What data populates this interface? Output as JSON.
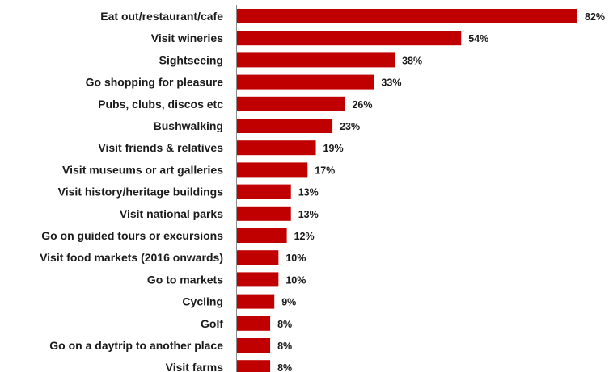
{
  "chart_data": {
    "type": "bar",
    "orientation": "horizontal",
    "bar_color": "#C00000",
    "categories": [
      "Eat out/restaurant/cafe",
      "Visit wineries",
      "Sightseeing",
      "Go shopping for pleasure",
      "Pubs, clubs, discos etc",
      "Bushwalking",
      "Visit friends & relatives",
      "Visit museums or art galleries",
      "Visit history/heritage buildings",
      "Visit national parks",
      "Go on guided tours or excursions",
      "Visit food markets (2016 onwards)",
      "Go to markets",
      "Cycling",
      "Golf",
      "Go on a daytrip to another place",
      "Visit farms"
    ],
    "values": [
      82,
      54,
      38,
      33,
      26,
      23,
      19,
      17,
      13,
      13,
      12,
      10,
      10,
      9,
      8,
      8,
      8
    ],
    "value_labels": [
      "82%",
      "54%",
      "38%",
      "33%",
      "26%",
      "23%",
      "19%",
      "17%",
      "13%",
      "13%",
      "12%",
      "10%",
      "10%",
      "9%",
      "8%",
      "8%",
      "8%"
    ],
    "xlim": [
      0,
      85
    ],
    "grid": false,
    "legend": "none"
  }
}
